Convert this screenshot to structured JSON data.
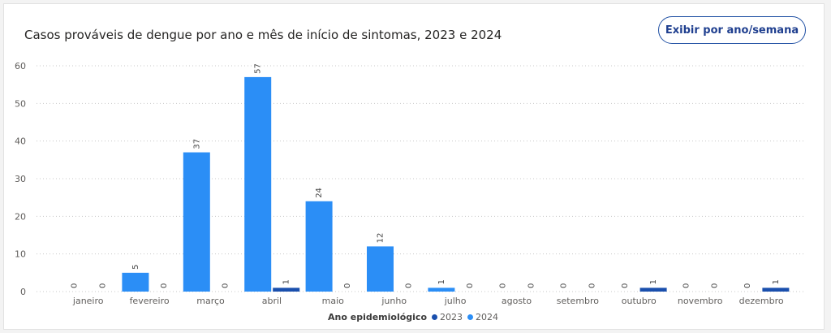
{
  "header": {
    "title": "Casos prováveis de dengue por ano e mês de início de sintomas, 2023 e 2024",
    "toggle_label": "Exibir por ano/semana"
  },
  "legend": {
    "title": "Ano epidemiológico",
    "items": [
      {
        "label": "2023",
        "color": "#1a4fad"
      },
      {
        "label": "2024",
        "color": "#2b8ef6"
      }
    ]
  },
  "chart_data": {
    "type": "bar",
    "title": "Casos prováveis de dengue por ano e mês de início de sintomas, 2023 e 2024",
    "xlabel": "",
    "ylabel": "",
    "ylim": [
      0,
      60
    ],
    "yticks": [
      0,
      10,
      20,
      30,
      40,
      50,
      60
    ],
    "grid": true,
    "legend_position": "bottom",
    "categories": [
      "janeiro",
      "fevereiro",
      "março",
      "abril",
      "maio",
      "junho",
      "julho",
      "agosto",
      "setembro",
      "outubro",
      "novembro",
      "dezembro"
    ],
    "series": [
      {
        "name": "2024",
        "color": "#2b8ef6",
        "values": [
          0,
          5,
          37,
          57,
          24,
          12,
          1,
          0,
          0,
          0,
          0,
          0
        ]
      },
      {
        "name": "2023",
        "color": "#1a4fad",
        "values": [
          0,
          0,
          0,
          1,
          0,
          0,
          0,
          0,
          0,
          1,
          0,
          1
        ]
      }
    ]
  }
}
